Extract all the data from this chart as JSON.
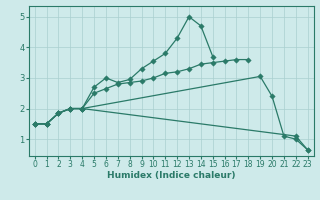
{
  "xlabel": "Humidex (Indice chaleur)",
  "xlim": [
    -0.5,
    23.5
  ],
  "ylim": [
    0.45,
    5.35
  ],
  "xtick_labels": [
    "0",
    "1",
    "2",
    "3",
    "4",
    "5",
    "6",
    "7",
    "8",
    "9",
    "10",
    "11",
    "12",
    "13",
    "14",
    "15",
    "16",
    "17",
    "18",
    "19",
    "20",
    "21",
    "22",
    "23"
  ],
  "yticks": [
    1,
    2,
    3,
    4,
    5
  ],
  "bg_color": "#ceeaea",
  "grid_color": "#aacfcf",
  "line_color": "#2a7a68",
  "line1_x": [
    0,
    1,
    2,
    3,
    4,
    5,
    6,
    7,
    8,
    9,
    10,
    11,
    12,
    13,
    14,
    15
  ],
  "line1_y": [
    1.5,
    1.5,
    1.85,
    2.0,
    2.0,
    2.7,
    3.0,
    2.85,
    2.95,
    3.3,
    3.55,
    3.8,
    4.3,
    5.0,
    4.7,
    3.7
  ],
  "line2_x": [
    0,
    1,
    2,
    3,
    4,
    5,
    6,
    7,
    8,
    9,
    10,
    11,
    12,
    13,
    14,
    15,
    16,
    17,
    18
  ],
  "line2_y": [
    1.5,
    1.5,
    1.85,
    2.0,
    2.0,
    2.5,
    2.65,
    2.8,
    2.85,
    2.9,
    3.0,
    3.15,
    3.2,
    3.3,
    3.45,
    3.5,
    3.55,
    3.6,
    3.6
  ],
  "line3_x": [
    0,
    1,
    2,
    3,
    4,
    19,
    20,
    21,
    22,
    23
  ],
  "line3_y": [
    1.5,
    1.5,
    1.85,
    2.0,
    2.0,
    3.05,
    2.4,
    1.1,
    1.0,
    0.65
  ],
  "line4_x": [
    0,
    1,
    2,
    3,
    4,
    22,
    23
  ],
  "line4_y": [
    1.5,
    1.5,
    1.85,
    2.0,
    2.0,
    1.1,
    0.65
  ]
}
